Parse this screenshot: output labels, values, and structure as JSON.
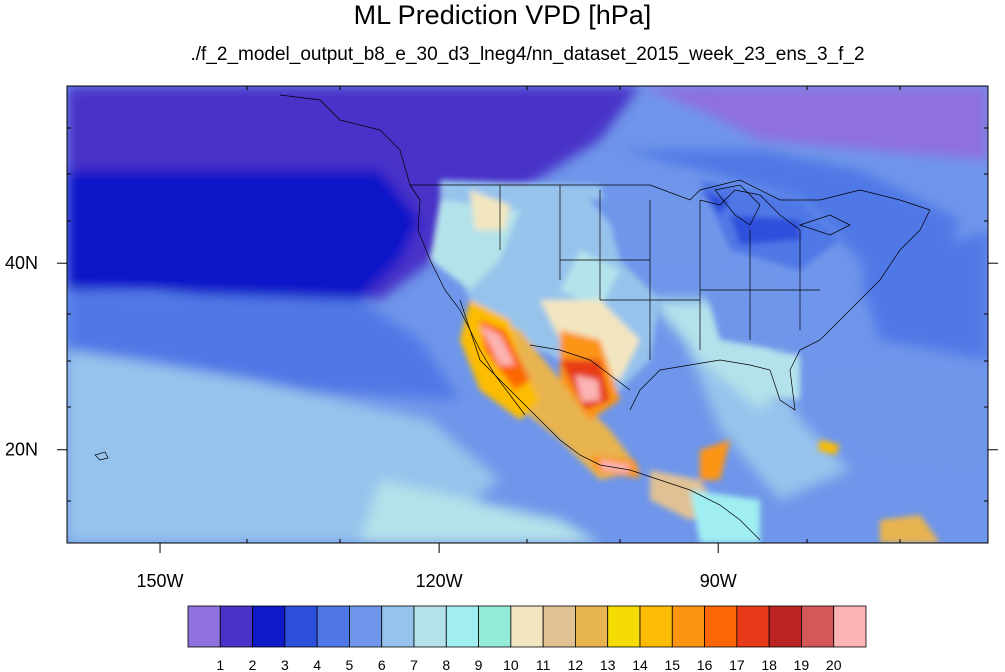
{
  "title": "ML Prediction VPD [hPa]",
  "subtitle": "./f_2_model_output_b8_e_30_d3_lneg4/nn_dataset_2015_week_23_ens_3_f_2",
  "map": {
    "projection": "cylindrical equidistant",
    "lon_range": [
      -160,
      -61
    ],
    "lat_range": [
      10,
      59
    ],
    "lon_ticks": [
      {
        "value": -150,
        "label": "150W"
      },
      {
        "value": -120,
        "label": "120W"
      },
      {
        "value": -90,
        "label": "90W"
      }
    ],
    "lat_ticks": [
      {
        "value": 40,
        "label": "40N"
      },
      {
        "value": 20,
        "label": "20N"
      }
    ]
  },
  "colorbar": {
    "labels": [
      "1",
      "2",
      "3",
      "4",
      "5",
      "6",
      "7",
      "8",
      "9",
      "10",
      "11",
      "12",
      "13",
      "14",
      "15",
      "16",
      "17",
      "18",
      "19",
      "20"
    ],
    "colors": [
      "#8f70dc",
      "#4a32c8",
      "#0f19c8",
      "#2d50dc",
      "#4f78e6",
      "#6f96ea",
      "#96c3ec",
      "#b4e2ea",
      "#a0eef2",
      "#94ecd8",
      "#f2e6c0",
      "#e0c194",
      "#e8b450",
      "#f4dc04",
      "#fcbc04",
      "#fc9414",
      "#fc6604",
      "#e83a18",
      "#bc2424",
      "#d45858",
      "#fcb4b4"
    ]
  }
}
